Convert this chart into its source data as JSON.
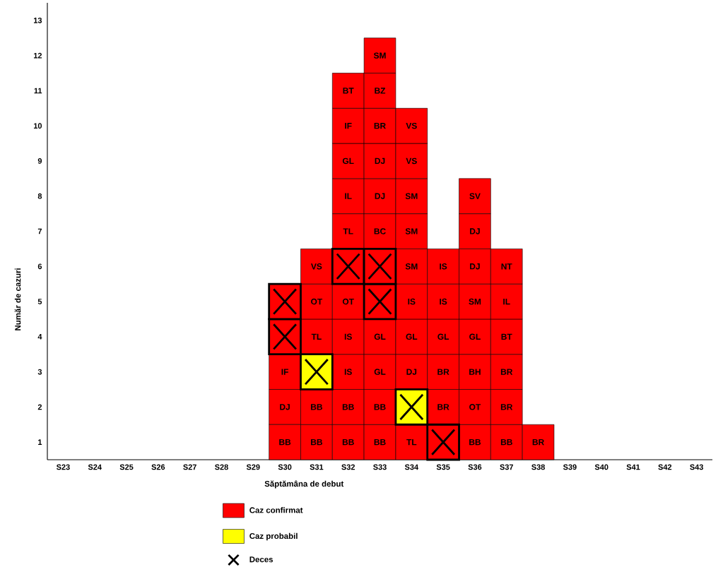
{
  "chart_data": {
    "type": "bar",
    "xlabel": "Săptămâna de debut",
    "ylabel": "Număr de cazuri",
    "categories": [
      "S23",
      "S24",
      "S25",
      "S26",
      "S27",
      "S28",
      "S29",
      "S30",
      "S31",
      "S32",
      "S33",
      "S34",
      "S35",
      "S36",
      "S37",
      "S38",
      "S39",
      "S40",
      "S41",
      "S42",
      "S43"
    ],
    "ylim": [
      0.5,
      13.5
    ],
    "yticks": [
      1,
      2,
      3,
      4,
      5,
      6,
      7,
      8,
      9,
      10,
      11,
      12,
      13
    ],
    "legend": "bottom",
    "series": [
      {
        "name": "Caz confirmat",
        "color": "#ff0000",
        "x": [
          "S30",
          "S30",
          "S30",
          "S30",
          "S30",
          "S31",
          "S31",
          "S31",
          "S31",
          "S31",
          "S32",
          "S32",
          "S32",
          "S32",
          "S32",
          "S32",
          "S32",
          "S32",
          "S32",
          "S32",
          "S32",
          "S33",
          "S33",
          "S33",
          "S33",
          "S33",
          "S33",
          "S33",
          "S33",
          "S33",
          "S33",
          "S33",
          "S33",
          "S34",
          "S34",
          "S34",
          "S34",
          "S34",
          "S34",
          "S34",
          "S34",
          "S34",
          "S35",
          "S35",
          "S35",
          "S35",
          "S35",
          "S35",
          "S36",
          "S36",
          "S36",
          "S36",
          "S36",
          "S36",
          "S36",
          "S36",
          "S37",
          "S37",
          "S37",
          "S37",
          "S37",
          "S37",
          "S38"
        ],
        "base": [
          0.5,
          1.5,
          2.5,
          3.5,
          4.5,
          0.5,
          1.5,
          3.5,
          4.5,
          5.5,
          0.5,
          1.5,
          2.5,
          3.5,
          4.5,
          5.5,
          6.5,
          7.5,
          8.5,
          9.5,
          10.5,
          0.5,
          1.5,
          2.5,
          3.5,
          4.5,
          5.5,
          6.5,
          7.5,
          8.5,
          9.5,
          10.5,
          11.5,
          0.5,
          2.5,
          3.5,
          4.5,
          5.5,
          6.5,
          7.5,
          8.5,
          9.5,
          0.5,
          1.5,
          2.5,
          3.5,
          4.5,
          5.5,
          0.5,
          1.5,
          2.5,
          3.5,
          4.5,
          5.5,
          6.5,
          7.5,
          0.5,
          1.5,
          2.5,
          3.5,
          4.5,
          5.5,
          0.5
        ],
        "values": [
          1,
          1,
          1,
          1,
          1,
          1,
          1,
          1,
          1,
          1,
          1,
          1,
          1,
          1,
          1,
          1,
          1,
          1,
          1,
          1,
          1,
          1,
          1,
          1,
          1,
          1,
          1,
          1,
          1,
          1,
          1,
          1,
          1,
          1,
          1,
          1,
          1,
          1,
          1,
          1,
          1,
          1,
          1,
          1,
          1,
          1,
          1,
          1,
          1,
          1,
          1,
          1,
          1,
          1,
          1,
          1,
          1,
          1,
          1,
          1,
          1,
          1,
          1
        ],
        "value_labels": [
          "BB",
          "DJ",
          "IF",
          null,
          null,
          "BB",
          "BB",
          "TL",
          "OT",
          "VS",
          "BB",
          "BB",
          "IS",
          "IS",
          "OT",
          null,
          "TL",
          "IL",
          "GL",
          "IF",
          "BT",
          "BB",
          "BB",
          "GL",
          "GL",
          null,
          null,
          "BC",
          "DJ",
          "DJ",
          "BR",
          "BZ",
          "SM",
          "TL",
          "DJ",
          "GL",
          "IS",
          "SM",
          "SM",
          "SM",
          "VS",
          "VS",
          null,
          "BR",
          "BR",
          "GL",
          "IS",
          "IS",
          "BB",
          "OT",
          "BH",
          "GL",
          "SM",
          "DJ",
          "DJ",
          "SV",
          "BB",
          "BR",
          "BR",
          "BT",
          "IL",
          "NT",
          "BR"
        ]
      },
      {
        "name": "Caz probabil",
        "color": "#ffff00",
        "x": [
          "S31",
          "S34"
        ],
        "base": [
          2.5,
          1.5
        ],
        "values": [
          1,
          1
        ],
        "value_labels": [
          null,
          null
        ]
      },
      {
        "name": "Deces",
        "type": "scatter",
        "color": "#000000",
        "marker": "cross",
        "x": [
          "S30",
          "S30",
          "S31",
          "S32",
          "S33",
          "S33",
          "S34",
          "S35"
        ],
        "values": [
          4,
          5,
          3,
          6,
          5,
          6,
          2,
          1
        ]
      }
    ]
  }
}
